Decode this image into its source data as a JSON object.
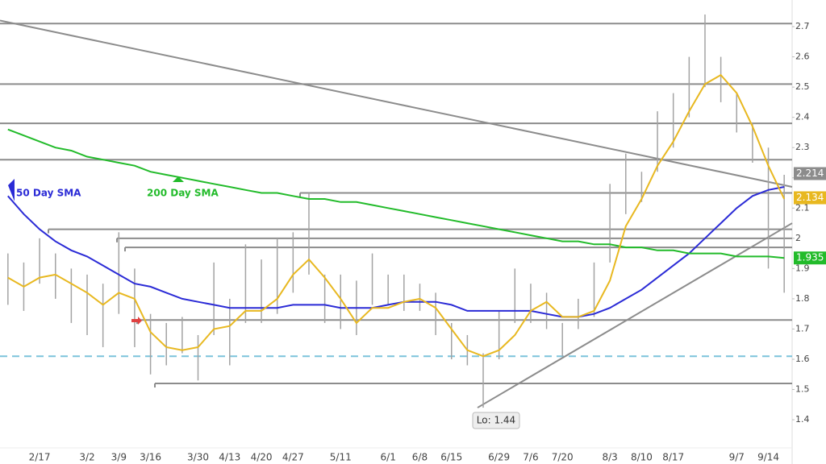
{
  "chart_data": {
    "type": "hilo",
    "categories": [
      null,
      null,
      "2/17",
      null,
      null,
      "3/2",
      null,
      "3/9",
      null,
      "3/16",
      null,
      null,
      "3/30",
      null,
      "4/13",
      null,
      "4/20",
      null,
      "4/27",
      null,
      null,
      "5/11",
      null,
      null,
      "6/1",
      null,
      "6/8",
      null,
      "6/15",
      null,
      null,
      "6/29",
      null,
      "7/6",
      null,
      "7/20",
      null,
      null,
      "8/3",
      null,
      "8/10",
      null,
      "8/17",
      null,
      null,
      null,
      "9/7",
      null,
      "9/14",
      null
    ],
    "highs": [
      1.95,
      1.92,
      2.0,
      1.95,
      1.9,
      1.88,
      1.85,
      2.02,
      1.9,
      1.75,
      1.72,
      1.74,
      1.68,
      1.92,
      1.8,
      1.98,
      1.93,
      2.0,
      2.02,
      2.15,
      1.88,
      1.88,
      1.86,
      1.95,
      1.88,
      1.88,
      1.85,
      1.82,
      1.72,
      1.68,
      1.62,
      1.76,
      1.9,
      1.85,
      1.82,
      1.72,
      1.8,
      1.92,
      2.18,
      2.28,
      2.22,
      2.42,
      2.48,
      2.6,
      2.74,
      2.6,
      2.48,
      2.38,
      2.3,
      2.21
    ],
    "lows": [
      1.78,
      1.76,
      1.85,
      1.8,
      1.72,
      1.68,
      1.64,
      1.75,
      1.64,
      1.55,
      1.58,
      1.62,
      1.53,
      1.68,
      1.58,
      1.72,
      1.72,
      1.75,
      1.82,
      1.88,
      1.72,
      1.7,
      1.68,
      1.78,
      1.78,
      1.76,
      1.76,
      1.68,
      1.6,
      1.58,
      1.44,
      1.6,
      1.72,
      1.72,
      1.7,
      1.61,
      1.7,
      1.74,
      1.92,
      2.08,
      2.12,
      2.22,
      2.3,
      2.4,
      2.5,
      2.45,
      2.35,
      2.25,
      1.9,
      1.82
    ],
    "bar_color": "#a3a3a3",
    "series": [
      {
        "name": "50 Day SMA",
        "color": "#2b2bd6",
        "values": [
          2.14,
          2.08,
          2.03,
          1.99,
          1.96,
          1.94,
          1.91,
          1.88,
          1.85,
          1.84,
          1.82,
          1.8,
          1.79,
          1.78,
          1.77,
          1.77,
          1.77,
          1.77,
          1.78,
          1.78,
          1.78,
          1.77,
          1.77,
          1.77,
          1.78,
          1.79,
          1.79,
          1.79,
          1.78,
          1.76,
          1.76,
          1.76,
          1.76,
          1.76,
          1.75,
          1.74,
          1.74,
          1.75,
          1.77,
          1.8,
          1.83,
          1.87,
          1.91,
          1.95,
          2.0,
          2.05,
          2.1,
          2.14,
          2.16,
          2.17
        ]
      },
      {
        "name": "200 Day SMA",
        "color": "#22bb2a",
        "values": [
          2.36,
          2.34,
          2.32,
          2.3,
          2.29,
          2.27,
          2.26,
          2.25,
          2.24,
          2.22,
          2.21,
          2.2,
          2.19,
          2.18,
          2.17,
          2.16,
          2.15,
          2.15,
          2.14,
          2.13,
          2.13,
          2.12,
          2.12,
          2.11,
          2.1,
          2.09,
          2.08,
          2.07,
          2.06,
          2.05,
          2.04,
          2.03,
          2.02,
          2.01,
          2.0,
          1.99,
          1.99,
          1.98,
          1.98,
          1.97,
          1.97,
          1.96,
          1.96,
          1.95,
          1.95,
          1.95,
          1.94,
          1.94,
          1.94,
          1.935
        ]
      },
      {
        "color": "#e8b820",
        "values": [
          1.87,
          1.84,
          1.87,
          1.88,
          1.85,
          1.82,
          1.78,
          1.82,
          1.8,
          1.69,
          1.64,
          1.63,
          1.64,
          1.7,
          1.71,
          1.76,
          1.76,
          1.8,
          1.88,
          1.93,
          1.87,
          1.8,
          1.72,
          1.77,
          1.77,
          1.79,
          1.8,
          1.77,
          1.7,
          1.63,
          1.61,
          1.63,
          1.68,
          1.76,
          1.79,
          1.74,
          1.74,
          1.76,
          1.86,
          2.04,
          2.13,
          2.24,
          2.32,
          2.42,
          2.51,
          2.54,
          2.48,
          2.37,
          2.24,
          2.13
        ]
      }
    ],
    "levels": [
      2.71,
      2.51,
      2.38,
      2.26,
      2.15,
      2.03,
      2.0,
      1.97,
      1.73,
      1.52
    ],
    "level_color": "#8c8c8c",
    "support_line": {
      "value": 1.61,
      "color": "#7cc4dc"
    },
    "trendlines": [
      [
        2.72,
        2.17
      ],
      [
        1.44,
        2.05
      ]
    ],
    "low_label": "Lo: 1.44",
    "price_tags": [
      {
        "value": 2.214,
        "color": "#8c8c8c"
      },
      {
        "value": 2.134,
        "color": "#e8b820"
      },
      {
        "value": 1.935,
        "color": "#22bb2a"
      }
    ],
    "ylim": [
      1.307,
      2.788
    ],
    "yticks": [
      1.4,
      1.5,
      1.6,
      1.7,
      1.8,
      1.9,
      2,
      2.1,
      2.2,
      2.3,
      2.4,
      2.5,
      2.6,
      2.7
    ]
  }
}
